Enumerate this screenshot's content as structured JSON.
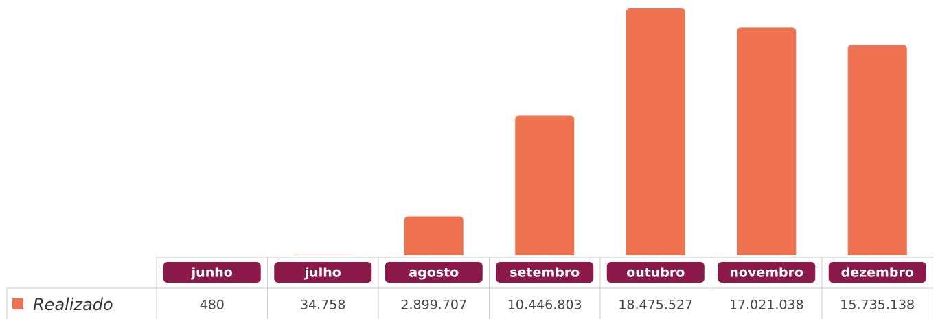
{
  "chart_data": {
    "type": "bar",
    "categories": [
      "junho",
      "julho",
      "agosto",
      "setembro",
      "outubro",
      "novembro",
      "dezembro"
    ],
    "series": [
      {
        "name": "Realizado",
        "color": "#ee7150",
        "values": [
          480,
          34758,
          2899707,
          10446803,
          18475527,
          17021038,
          15735138
        ],
        "value_labels": [
          "480",
          "34.758",
          "2.899.707",
          "10.446.803",
          "18.475.527",
          "17.021.038",
          "15.735.138"
        ]
      }
    ]
  }
}
